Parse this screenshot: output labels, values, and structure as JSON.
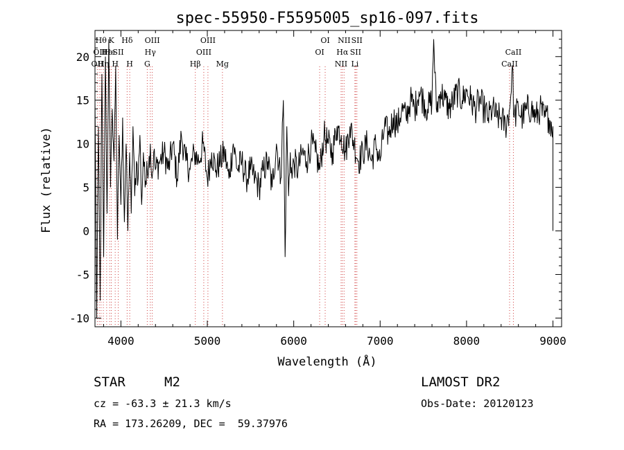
{
  "header": {
    "title": "spec-55950-F5595005_sp16-097.fits"
  },
  "info": {
    "object_class": "STAR",
    "subclass": "M2",
    "survey": "LAMOST DR2",
    "cz": "cz = -63.3 ± 21.3 km/s",
    "obs_date": "Obs-Date: 20120123",
    "coords": "RA = 173.26209, DEC =  59.37976"
  },
  "chart_data": {
    "type": "line",
    "title": "spec-55950-F5595005_sp16-097.fits",
    "xlabel": "Wavelength (Å)",
    "ylabel": "Flux (relative)",
    "xlim": [
      3700,
      9100
    ],
    "ylim": [
      -11,
      23
    ],
    "xticks": [
      4000,
      5000,
      6000,
      7000,
      8000,
      9000
    ],
    "yticks": [
      -10,
      -5,
      0,
      5,
      10,
      15,
      20
    ],
    "grid": false,
    "series": [
      {
        "x": [
          3700,
          3720,
          3740,
          3760,
          3780,
          3800,
          3820,
          3840,
          3860,
          3880,
          3900,
          3920,
          3940,
          3960,
          3980,
          4000,
          4020,
          4040,
          4060,
          4080,
          4100,
          4120,
          4140,
          4160,
          4180,
          4200,
          4220,
          4240,
          4260,
          4280,
          4300,
          4320,
          4340,
          4360,
          4380,
          4400,
          4450,
          4500,
          4550,
          4600,
          4650,
          4700,
          4750,
          4800,
          4850,
          4900,
          4950,
          5000,
          5050,
          5100,
          5150,
          5200,
          5250,
          5300,
          5350,
          5400,
          5450,
          5500,
          5550,
          5600,
          5650,
          5700,
          5750,
          5800,
          5850,
          5880,
          5900,
          5920,
          5940,
          5960,
          5980,
          6000,
          6050,
          6100,
          6150,
          6200,
          6250,
          6300,
          6350,
          6400,
          6450,
          6500,
          6550,
          6600,
          6650,
          6700,
          6750,
          6800,
          6850,
          6900,
          6950,
          7000,
          7050,
          7100,
          7150,
          7200,
          7250,
          7300,
          7350,
          7400,
          7450,
          7500,
          7550,
          7600,
          7620,
          7650,
          7700,
          7750,
          7800,
          7850,
          7900,
          7950,
          8000,
          8050,
          8100,
          8150,
          8200,
          8250,
          8300,
          8350,
          8400,
          8450,
          8500,
          8530,
          8550,
          8600,
          8650,
          8700,
          8750,
          8800,
          8850,
          8900,
          8950,
          9000,
          9000
        ],
        "y": [
          15,
          -10,
          12,
          -8,
          18,
          -3,
          20,
          2,
          22,
          5,
          14,
          8,
          19,
          -1,
          11,
          3,
          13,
          1,
          10,
          0,
          9,
          2,
          12,
          4,
          8,
          6,
          11,
          3,
          9,
          5,
          8,
          7,
          10,
          6,
          9,
          7,
          8,
          9,
          7,
          10,
          6,
          11,
          8,
          7,
          9,
          8,
          10,
          6,
          9,
          7,
          8,
          9,
          6,
          10,
          7,
          8,
          6,
          7,
          6,
          5,
          7,
          8,
          5,
          10,
          6,
          15,
          -3,
          12,
          4,
          9,
          6,
          8,
          7,
          9,
          8,
          10,
          9,
          7,
          11,
          10,
          9,
          12,
          11,
          9,
          12,
          10,
          8,
          9,
          10,
          8,
          10,
          8,
          12,
          11,
          13,
          12,
          14,
          13,
          15,
          14,
          16,
          15,
          14,
          15,
          22,
          14,
          16,
          15,
          14,
          15,
          16,
          15,
          16,
          15,
          14,
          15,
          14,
          13,
          14,
          13,
          13,
          12,
          14,
          19,
          13,
          14,
          13,
          14,
          14,
          13,
          14,
          13,
          13,
          12,
          0
        ]
      }
    ],
    "line_markers": [
      {
        "wave": 3727,
        "label": "OII",
        "row": 2
      },
      {
        "wave": 3750,
        "label": "OII",
        "row": 1
      },
      {
        "wave": 3770,
        "label": "Hθ",
        "row": 0
      },
      {
        "wave": 3797,
        "label": "Hη",
        "row": 2
      },
      {
        "wave": 3835,
        "label": "Hε",
        "row": 1
      },
      {
        "wave": 3870,
        "label": "He",
        "row": 1
      },
      {
        "wave": 3889,
        "label": "K",
        "row": 0
      },
      {
        "wave": 3934,
        "label": "H",
        "row": 2
      },
      {
        "wave": 3969,
        "label": "SII",
        "row": 1
      },
      {
        "wave": 4072,
        "label": "Hδ",
        "row": 0
      },
      {
        "wave": 4102,
        "label": "H",
        "row": 2
      },
      {
        "wave": 4305,
        "label": "G",
        "row": 2
      },
      {
        "wave": 4340,
        "label": "Hγ",
        "row": 1
      },
      {
        "wave": 4363,
        "label": "OIII",
        "row": 0
      },
      {
        "wave": 4861,
        "label": "Hβ",
        "row": 2
      },
      {
        "wave": 4959,
        "label": "OIII",
        "row": 1
      },
      {
        "wave": 5007,
        "label": "OIII",
        "row": 0
      },
      {
        "wave": 5175,
        "label": "Mg",
        "row": 2
      },
      {
        "wave": 6300,
        "label": "OI",
        "row": 1
      },
      {
        "wave": 6364,
        "label": "OI",
        "row": 0
      },
      {
        "wave": 6548,
        "label": "NII",
        "row": 2
      },
      {
        "wave": 6563,
        "label": "Hα",
        "row": 1
      },
      {
        "wave": 6583,
        "label": "NII",
        "row": 0
      },
      {
        "wave": 6708,
        "label": "Li",
        "row": 2
      },
      {
        "wave": 6716,
        "label": "SII",
        "row": 1
      },
      {
        "wave": 6731,
        "label": "SII",
        "row": 0
      },
      {
        "wave": 8498,
        "label": "CaII",
        "row": 2
      },
      {
        "wave": 8542,
        "label": "CaII",
        "row": 1
      }
    ]
  }
}
